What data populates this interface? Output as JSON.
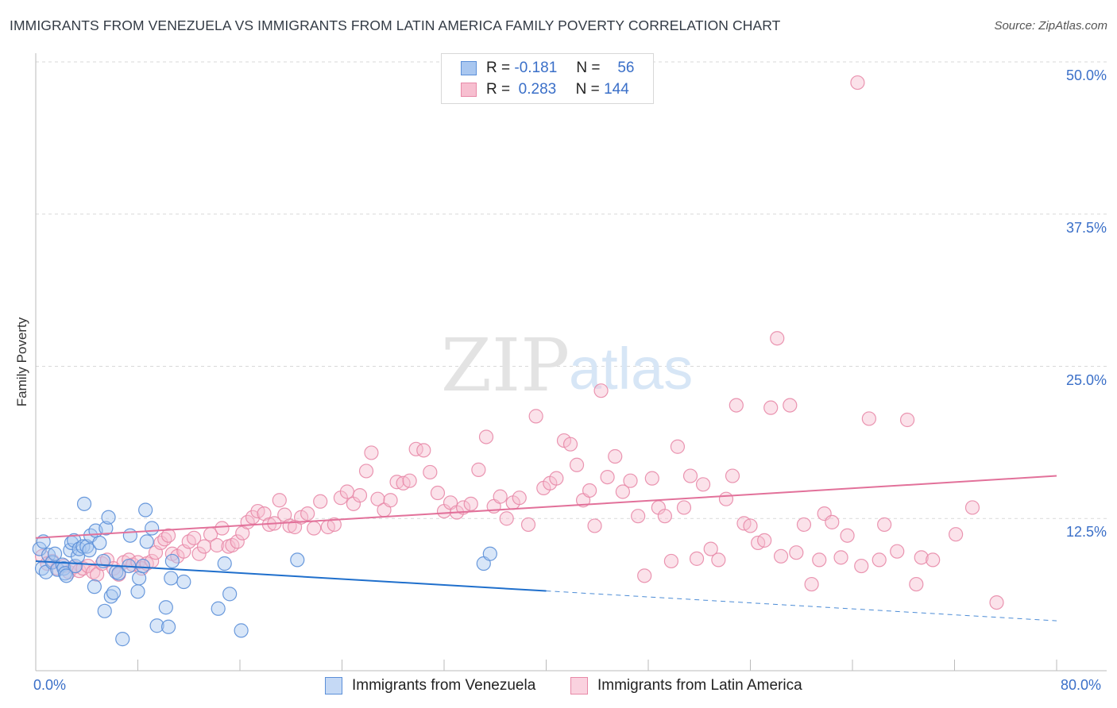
{
  "title": "IMMIGRANTS FROM VENEZUELA VS IMMIGRANTS FROM LATIN AMERICA FAMILY POVERTY CORRELATION CHART",
  "source": "Source: ZipAtlas.com",
  "watermark": {
    "zip": "ZIP",
    "atlas": "atlas"
  },
  "legend": {
    "venezuela": {
      "r_label": "R =",
      "r_value": "-0.181",
      "n_label": "N =",
      "n_value": "56"
    },
    "latin": {
      "r_label": "R =",
      "r_value": "0.283",
      "n_label": "N =",
      "n_value": "144"
    }
  },
  "colors": {
    "venezuela_fill": "#a9c7f0",
    "venezuela_stroke": "#5b8fd8",
    "venezuela_line": "#1f6fcc",
    "latin_fill": "#f7bfd0",
    "latin_stroke": "#e889a8",
    "latin_line": "#e2719a",
    "tick_label": "#3a6fc8",
    "grid": "#d9d9d9"
  },
  "chart_data": {
    "type": "scatter",
    "title": "IMMIGRANTS FROM VENEZUELA VS IMMIGRANTS FROM LATIN AMERICA FAMILY POVERTY CORRELATION CHART",
    "xlabel": "",
    "ylabel": "Family Poverty",
    "xlim": [
      0,
      80
    ],
    "ylim": [
      0,
      50
    ],
    "x_tick_labels": [
      "0.0%",
      "80.0%"
    ],
    "y_ticks": [
      12.5,
      25.0,
      37.5,
      50.0
    ],
    "y_tick_labels": [
      "12.5%",
      "25.0%",
      "37.5%",
      "50.0%"
    ],
    "grid": "horizontal dashed",
    "legend_placement": "top-center and bottom",
    "series": [
      {
        "name": "Immigrants from Venezuela",
        "r": -0.181,
        "n": 56,
        "trend": {
          "x0": 0,
          "y0": 9.0,
          "x1": 80,
          "y1": 4.1,
          "solid_until_x": 40
        },
        "points": [
          [
            0.3,
            10.0
          ],
          [
            0.5,
            8.4
          ],
          [
            0.6,
            10.6
          ],
          [
            0.8,
            8.1
          ],
          [
            1.0,
            9.5
          ],
          [
            1.3,
            8.9
          ],
          [
            1.5,
            9.6
          ],
          [
            1.7,
            8.3
          ],
          [
            2.1,
            8.7
          ],
          [
            2.2,
            8.4
          ],
          [
            2.3,
            8.0
          ],
          [
            2.4,
            7.8
          ],
          [
            2.7,
            9.9
          ],
          [
            2.8,
            10.5
          ],
          [
            3.0,
            10.7
          ],
          [
            3.1,
            8.6
          ],
          [
            3.3,
            9.4
          ],
          [
            3.4,
            10.0
          ],
          [
            3.7,
            10.2
          ],
          [
            3.8,
            13.7
          ],
          [
            4.0,
            10.2
          ],
          [
            4.2,
            9.9
          ],
          [
            4.3,
            11.1
          ],
          [
            4.6,
            6.9
          ],
          [
            4.7,
            11.5
          ],
          [
            5.0,
            10.5
          ],
          [
            5.3,
            9.0
          ],
          [
            5.4,
            4.9
          ],
          [
            5.5,
            11.7
          ],
          [
            5.7,
            12.6
          ],
          [
            5.9,
            6.1
          ],
          [
            6.1,
            6.4
          ],
          [
            6.3,
            8.1
          ],
          [
            6.5,
            8.0
          ],
          [
            6.8,
            2.6
          ],
          [
            7.3,
            8.6
          ],
          [
            7.4,
            11.1
          ],
          [
            8.0,
            6.5
          ],
          [
            8.1,
            7.6
          ],
          [
            8.6,
            13.2
          ],
          [
            8.7,
            10.6
          ],
          [
            9.1,
            11.7
          ],
          [
            9.5,
            3.7
          ],
          [
            10.2,
            5.2
          ],
          [
            10.4,
            3.6
          ],
          [
            10.6,
            7.6
          ],
          [
            10.7,
            9.0
          ],
          [
            11.6,
            7.3
          ],
          [
            14.3,
            5.1
          ],
          [
            14.8,
            8.8
          ],
          [
            15.2,
            6.3
          ],
          [
            16.1,
            3.3
          ],
          [
            20.5,
            9.1
          ],
          [
            35.1,
            8.8
          ],
          [
            35.6,
            9.6
          ],
          [
            8.4,
            8.6
          ]
        ]
      },
      {
        "name": "Immigrants from Latin America",
        "r": 0.283,
        "n": 144,
        "trend": {
          "x0": 0,
          "y0": 10.9,
          "x1": 80,
          "y1": 16.0
        },
        "points": [
          [
            0.5,
            9.4
          ],
          [
            0.9,
            8.8
          ],
          [
            1.3,
            9.0
          ],
          [
            1.7,
            8.4
          ],
          [
            2.2,
            8.6
          ],
          [
            2.6,
            8.1
          ],
          [
            3.0,
            8.5
          ],
          [
            3.4,
            8.2
          ],
          [
            3.7,
            8.4
          ],
          [
            4.1,
            8.6
          ],
          [
            4.5,
            8.1
          ],
          [
            4.8,
            7.9
          ],
          [
            5.2,
            8.8
          ],
          [
            5.6,
            9.1
          ],
          [
            6.1,
            8.4
          ],
          [
            6.5,
            7.9
          ],
          [
            6.9,
            8.9
          ],
          [
            7.3,
            9.1
          ],
          [
            7.6,
            8.7
          ],
          [
            8.0,
            8.9
          ],
          [
            8.3,
            8.4
          ],
          [
            8.7,
            8.8
          ],
          [
            9.1,
            9.0
          ],
          [
            9.4,
            9.7
          ],
          [
            9.8,
            10.5
          ],
          [
            10.1,
            10.8
          ],
          [
            10.4,
            11.1
          ],
          [
            10.7,
            9.6
          ],
          [
            11.1,
            9.4
          ],
          [
            11.6,
            9.8
          ],
          [
            12.0,
            10.6
          ],
          [
            12.4,
            10.9
          ],
          [
            12.8,
            9.6
          ],
          [
            13.2,
            10.2
          ],
          [
            13.7,
            11.2
          ],
          [
            14.2,
            10.3
          ],
          [
            14.6,
            11.7
          ],
          [
            15.1,
            10.2
          ],
          [
            15.4,
            10.3
          ],
          [
            15.8,
            10.6
          ],
          [
            16.2,
            11.3
          ],
          [
            16.6,
            12.2
          ],
          [
            17.0,
            12.6
          ],
          [
            17.4,
            13.1
          ],
          [
            17.9,
            12.9
          ],
          [
            18.3,
            12.0
          ],
          [
            18.7,
            12.1
          ],
          [
            19.1,
            14.0
          ],
          [
            19.5,
            12.8
          ],
          [
            19.9,
            11.9
          ],
          [
            20.3,
            11.8
          ],
          [
            20.8,
            12.6
          ],
          [
            21.3,
            12.9
          ],
          [
            21.8,
            11.7
          ],
          [
            22.3,
            13.9
          ],
          [
            22.9,
            11.8
          ],
          [
            23.4,
            12.0
          ],
          [
            23.9,
            14.2
          ],
          [
            24.4,
            14.7
          ],
          [
            24.9,
            13.7
          ],
          [
            25.4,
            14.4
          ],
          [
            25.9,
            16.4
          ],
          [
            26.3,
            17.9
          ],
          [
            26.8,
            14.1
          ],
          [
            27.3,
            13.2
          ],
          [
            27.8,
            14.0
          ],
          [
            28.3,
            15.5
          ],
          [
            28.8,
            15.4
          ],
          [
            29.3,
            15.6
          ],
          [
            29.8,
            18.2
          ],
          [
            30.4,
            18.1
          ],
          [
            30.9,
            16.3
          ],
          [
            31.5,
            14.6
          ],
          [
            32.0,
            13.1
          ],
          [
            32.5,
            13.8
          ],
          [
            33.0,
            13.0
          ],
          [
            33.5,
            13.4
          ],
          [
            34.1,
            13.7
          ],
          [
            34.7,
            16.5
          ],
          [
            35.3,
            19.2
          ],
          [
            35.9,
            13.5
          ],
          [
            36.4,
            14.3
          ],
          [
            36.9,
            12.5
          ],
          [
            37.4,
            13.8
          ],
          [
            37.9,
            14.2
          ],
          [
            38.6,
            12.0
          ],
          [
            39.2,
            20.9
          ],
          [
            39.8,
            15.0
          ],
          [
            40.3,
            15.4
          ],
          [
            40.8,
            15.8
          ],
          [
            41.4,
            18.9
          ],
          [
            41.9,
            18.6
          ],
          [
            42.4,
            16.9
          ],
          [
            42.9,
            14.0
          ],
          [
            43.4,
            14.8
          ],
          [
            43.8,
            11.9
          ],
          [
            44.3,
            23.0
          ],
          [
            44.8,
            15.9
          ],
          [
            45.4,
            17.6
          ],
          [
            46.0,
            14.7
          ],
          [
            46.6,
            15.6
          ],
          [
            47.2,
            12.7
          ],
          [
            47.7,
            7.8
          ],
          [
            48.3,
            15.8
          ],
          [
            48.8,
            13.4
          ],
          [
            49.3,
            12.7
          ],
          [
            49.8,
            9.0
          ],
          [
            50.3,
            18.4
          ],
          [
            50.8,
            13.4
          ],
          [
            51.3,
            16.0
          ],
          [
            51.8,
            9.2
          ],
          [
            52.3,
            15.3
          ],
          [
            52.9,
            10.0
          ],
          [
            53.5,
            9.1
          ],
          [
            54.1,
            14.1
          ],
          [
            54.6,
            16.0
          ],
          [
            54.9,
            21.8
          ],
          [
            55.5,
            12.1
          ],
          [
            56.0,
            11.9
          ],
          [
            56.6,
            10.5
          ],
          [
            57.1,
            10.7
          ],
          [
            57.6,
            21.6
          ],
          [
            58.1,
            27.3
          ],
          [
            58.4,
            9.4
          ],
          [
            59.1,
            21.8
          ],
          [
            59.6,
            9.7
          ],
          [
            60.2,
            12.0
          ],
          [
            60.8,
            7.1
          ],
          [
            61.4,
            9.1
          ],
          [
            61.8,
            12.9
          ],
          [
            62.4,
            12.2
          ],
          [
            63.1,
            9.3
          ],
          [
            63.6,
            11.1
          ],
          [
            64.4,
            48.3
          ],
          [
            64.7,
            8.6
          ],
          [
            65.3,
            20.7
          ],
          [
            66.1,
            9.1
          ],
          [
            66.5,
            12.0
          ],
          [
            67.5,
            9.8
          ],
          [
            68.3,
            20.6
          ],
          [
            69.0,
            7.1
          ],
          [
            69.4,
            9.3
          ],
          [
            70.3,
            9.1
          ],
          [
            72.1,
            11.2
          ],
          [
            73.4,
            13.4
          ],
          [
            75.3,
            5.6
          ]
        ]
      }
    ]
  },
  "bottom_legend": {
    "venezuela": "Immigrants from Venezuela",
    "latin": "Immigrants from Latin America"
  }
}
